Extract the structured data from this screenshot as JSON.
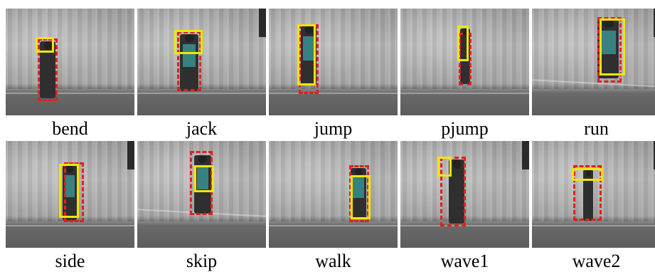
{
  "panels": [
    {
      "label": "bend"
    },
    {
      "label": "jack"
    },
    {
      "label": "jump"
    },
    {
      "label": "pjump"
    },
    {
      "label": "run"
    },
    {
      "label": "side"
    },
    {
      "label": "skip"
    },
    {
      "label": "walk"
    },
    {
      "label": "wave1"
    },
    {
      "label": "wave2"
    }
  ],
  "colors": {
    "ground_truth_box": "#e02020",
    "detection_box": "#f2e600",
    "person_highlight": "#3a8f8f"
  }
}
